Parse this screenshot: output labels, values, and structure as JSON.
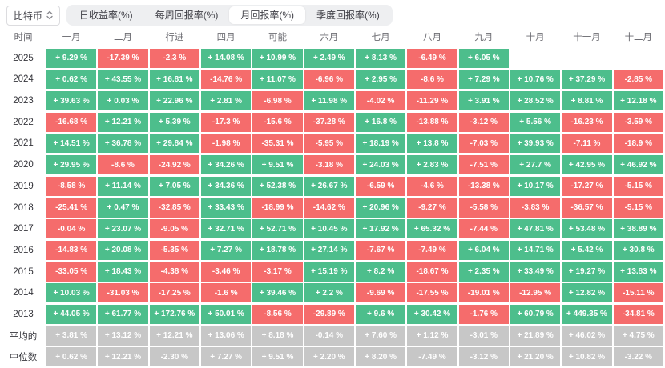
{
  "colors": {
    "positive": "#4dbe8c",
    "negative": "#f56c6c",
    "neutral": "#c7c7c7"
  },
  "controls": {
    "coin_selector": {
      "label": "比特币",
      "icon": "updown-chevron"
    },
    "tabs": [
      {
        "label": "日收益率(%)",
        "active": false
      },
      {
        "label": "每周回报率(%)",
        "active": false
      },
      {
        "label": "月回报率(%)",
        "active": true
      },
      {
        "label": "季度回报率(%)",
        "active": false
      }
    ]
  },
  "table": {
    "time_header": "时间",
    "month_headers": [
      "一月",
      "二月",
      "行进",
      "四月",
      "可能",
      "六月",
      "七月",
      "八月",
      "九月",
      "十月",
      "十一月",
      "十二月"
    ],
    "rows": [
      {
        "label": "2025",
        "type": "year",
        "values": [
          "+ 9.29 %",
          "-17.39 %",
          "-2.3 %",
          "+ 14.08 %",
          "+ 10.99 %",
          "+ 2.49 %",
          "+ 8.13 %",
          "-6.49 %",
          "+ 6.05 %",
          "",
          "",
          ""
        ]
      },
      {
        "label": "2024",
        "type": "year",
        "values": [
          "+ 0.62 %",
          "+ 43.55 %",
          "+ 16.81 %",
          "-14.76 %",
          "+ 11.07 %",
          "-6.96 %",
          "+ 2.95 %",
          "-8.6 %",
          "+ 7.29 %",
          "+ 10.76 %",
          "+ 37.29 %",
          "-2.85 %"
        ]
      },
      {
        "label": "2023",
        "type": "year",
        "values": [
          "+ 39.63 %",
          "+ 0.03 %",
          "+ 22.96 %",
          "+ 2.81 %",
          "-6.98 %",
          "+ 11.98 %",
          "-4.02 %",
          "-11.29 %",
          "+ 3.91 %",
          "+ 28.52 %",
          "+ 8.81 %",
          "+ 12.18 %"
        ]
      },
      {
        "label": "2022",
        "type": "year",
        "values": [
          "-16.68 %",
          "+ 12.21 %",
          "+ 5.39 %",
          "-17.3 %",
          "-15.6 %",
          "-37.28 %",
          "+ 16.8 %",
          "-13.88 %",
          "-3.12 %",
          "+ 5.56 %",
          "-16.23 %",
          "-3.59 %"
        ]
      },
      {
        "label": "2021",
        "type": "year",
        "values": [
          "+ 14.51 %",
          "+ 36.78 %",
          "+ 29.84 %",
          "-1.98 %",
          "-35.31 %",
          "-5.95 %",
          "+ 18.19 %",
          "+ 13.8 %",
          "-7.03 %",
          "+ 39.93 %",
          "-7.11 %",
          "-18.9 %"
        ]
      },
      {
        "label": "2020",
        "type": "year",
        "values": [
          "+ 29.95 %",
          "-8.6 %",
          "-24.92 %",
          "+ 34.26 %",
          "+ 9.51 %",
          "-3.18 %",
          "+ 24.03 %",
          "+ 2.83 %",
          "-7.51 %",
          "+ 27.7 %",
          "+ 42.95 %",
          "+ 46.92 %"
        ]
      },
      {
        "label": "2019",
        "type": "year",
        "values": [
          "-8.58 %",
          "+ 11.14 %",
          "+ 7.05 %",
          "+ 34.36 %",
          "+ 52.38 %",
          "+ 26.67 %",
          "-6.59 %",
          "-4.6 %",
          "-13.38 %",
          "+ 10.17 %",
          "-17.27 %",
          "-5.15 %"
        ]
      },
      {
        "label": "2018",
        "type": "year",
        "values": [
          "-25.41 %",
          "+ 0.47 %",
          "-32.85 %",
          "+ 33.43 %",
          "-18.99 %",
          "-14.62 %",
          "+ 20.96 %",
          "-9.27 %",
          "-5.58 %",
          "-3.83 %",
          "-36.57 %",
          "-5.15 %"
        ]
      },
      {
        "label": "2017",
        "type": "year",
        "values": [
          "-0.04 %",
          "+ 23.07 %",
          "-9.05 %",
          "+ 32.71 %",
          "+ 52.71 %",
          "+ 10.45 %",
          "+ 17.92 %",
          "+ 65.32 %",
          "-7.44 %",
          "+ 47.81 %",
          "+ 53.48 %",
          "+ 38.89 %"
        ]
      },
      {
        "label": "2016",
        "type": "year",
        "values": [
          "-14.83 %",
          "+ 20.08 %",
          "-5.35 %",
          "+ 7.27 %",
          "+ 18.78 %",
          "+ 27.14 %",
          "-7.67 %",
          "-7.49 %",
          "+ 6.04 %",
          "+ 14.71 %",
          "+ 5.42 %",
          "+ 30.8 %"
        ]
      },
      {
        "label": "2015",
        "type": "year",
        "values": [
          "-33.05 %",
          "+ 18.43 %",
          "-4.38 %",
          "-3.46 %",
          "-3.17 %",
          "+ 15.19 %",
          "+ 8.2 %",
          "-18.67 %",
          "+ 2.35 %",
          "+ 33.49 %",
          "+ 19.27 %",
          "+ 13.83 %"
        ]
      },
      {
        "label": "2014",
        "type": "year",
        "values": [
          "+ 10.03 %",
          "-31.03 %",
          "-17.25 %",
          "-1.6 %",
          "+ 39.46 %",
          "+ 2.2 %",
          "-9.69 %",
          "-17.55 %",
          "-19.01 %",
          "-12.95 %",
          "+ 12.82 %",
          "-15.11 %"
        ]
      },
      {
        "label": "2013",
        "type": "year",
        "values": [
          "+ 44.05 %",
          "+ 61.77 %",
          "+ 172.76 %",
          "+ 50.01 %",
          "-8.56 %",
          "-29.89 %",
          "+ 9.6 %",
          "+ 30.42 %",
          "-1.76 %",
          "+ 60.79 %",
          "+ 449.35 %",
          "-34.81 %"
        ]
      },
      {
        "label": "平均的",
        "type": "stat",
        "values": [
          "+ 3.81 %",
          "+ 13.12 %",
          "+ 12.21 %",
          "+ 13.06 %",
          "+ 8.18 %",
          "-0.14 %",
          "+ 7.60 %",
          "+ 1.12 %",
          "-3.01 %",
          "+ 21.89 %",
          "+ 46.02 %",
          "+ 4.75 %"
        ]
      },
      {
        "label": "中位数",
        "type": "stat",
        "values": [
          "+ 0.62 %",
          "+ 12.21 %",
          "-2.30 %",
          "+ 7.27 %",
          "+ 9.51 %",
          "+ 2.20 %",
          "+ 8.20 %",
          "-7.49 %",
          "-3.12 %",
          "+ 21.20 %",
          "+ 10.82 %",
          "-3.22 %"
        ]
      }
    ]
  }
}
